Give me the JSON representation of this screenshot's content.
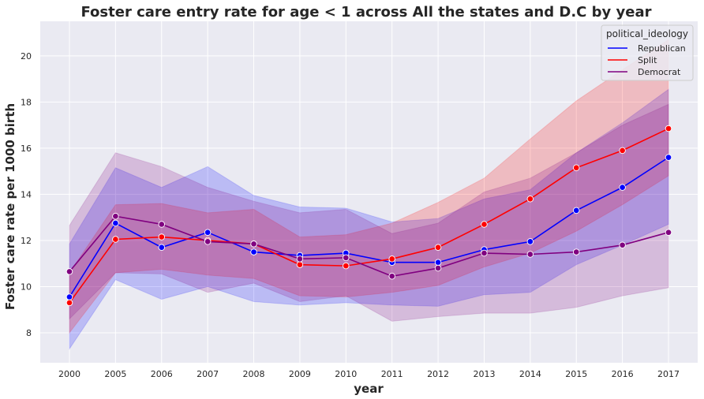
{
  "chart_data": {
    "type": "line",
    "title": "Foster care entry rate for age < 1 across All the states and D.C by year",
    "xlabel": "year",
    "ylabel": "Foster care rate per 1000 birth",
    "categories": [
      "2000",
      "2005",
      "2006",
      "2007",
      "2008",
      "2009",
      "2010",
      "2011",
      "2012",
      "2013",
      "2014",
      "2015",
      "2016",
      "2017"
    ],
    "ylim": [
      6.7,
      21.5
    ],
    "yticks": [
      8,
      10,
      12,
      14,
      16,
      18,
      20
    ],
    "grid": true,
    "legend": {
      "title": "political_ideology",
      "placement": "top-right"
    },
    "series": [
      {
        "name": "Republican",
        "color": "#0000ff",
        "values": [
          9.55,
          12.75,
          11.7,
          12.35,
          11.5,
          11.35,
          11.45,
          11.05,
          11.05,
          11.6,
          11.95,
          13.3,
          14.3,
          15.6
        ],
        "ci_low": [
          7.3,
          10.3,
          9.45,
          10.0,
          9.35,
          9.2,
          9.3,
          9.2,
          9.15,
          9.65,
          9.75,
          10.95,
          11.8,
          12.7
        ],
        "ci_high": [
          11.85,
          15.15,
          14.3,
          15.2,
          13.95,
          13.45,
          13.4,
          12.8,
          12.95,
          13.8,
          14.2,
          15.8,
          17.1,
          18.55
        ]
      },
      {
        "name": "Split",
        "color": "#ff0000",
        "values": [
          9.3,
          12.05,
          12.15,
          12.0,
          11.85,
          10.95,
          10.9,
          11.2,
          11.7,
          12.7,
          13.8,
          15.15,
          15.9,
          16.85
        ],
        "ci_low": [
          8.0,
          10.6,
          10.75,
          10.5,
          10.35,
          9.6,
          9.55,
          9.75,
          10.05,
          10.85,
          11.45,
          12.4,
          13.55,
          14.8
        ],
        "ci_high": [
          10.6,
          13.55,
          13.6,
          13.2,
          13.35,
          12.15,
          12.25,
          12.75,
          13.65,
          14.7,
          16.4,
          18.05,
          19.4,
          20.7
        ]
      },
      {
        "name": "Democrat",
        "color": "#800080",
        "values": [
          10.65,
          13.05,
          12.7,
          11.95,
          11.85,
          11.2,
          11.25,
          10.45,
          10.8,
          11.45,
          11.4,
          11.5,
          11.8,
          12.35
        ],
        "ci_low": [
          8.6,
          10.6,
          10.55,
          9.75,
          10.15,
          9.35,
          9.6,
          8.5,
          8.7,
          8.85,
          8.85,
          9.1,
          9.6,
          9.95
        ],
        "ci_high": [
          12.65,
          15.8,
          15.2,
          14.3,
          13.7,
          13.2,
          13.35,
          12.3,
          12.75,
          14.1,
          14.7,
          15.8,
          17.0,
          17.9
        ]
      }
    ]
  }
}
